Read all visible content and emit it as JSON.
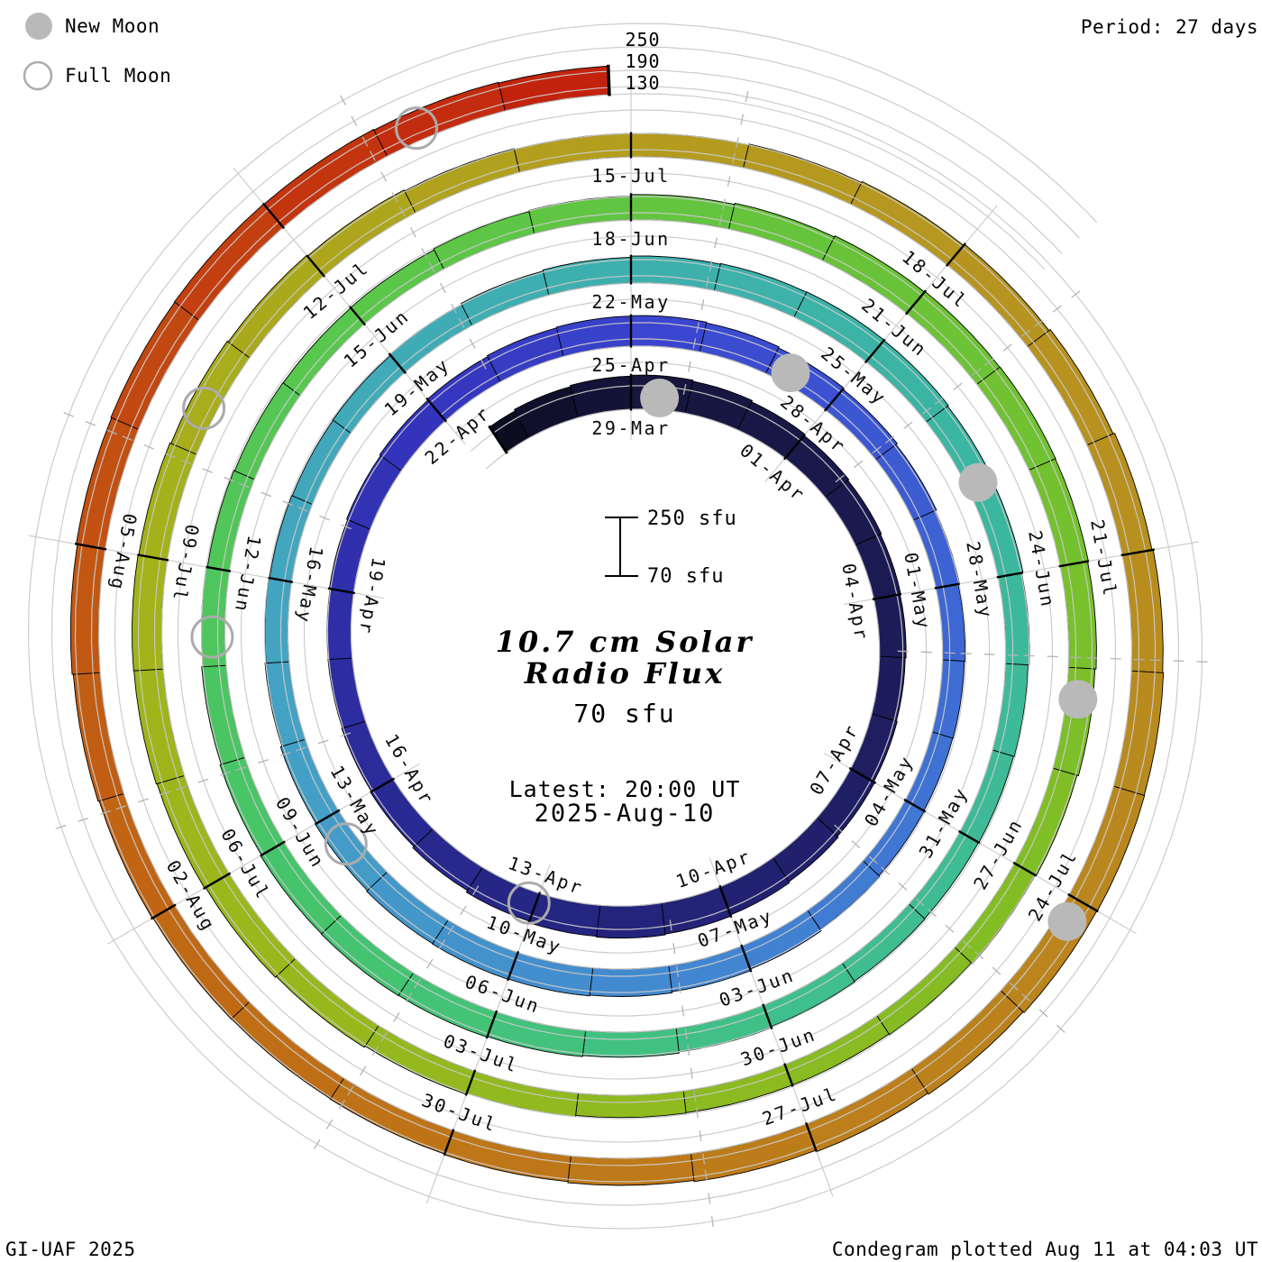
{
  "header": {
    "period": "Period: 27 days"
  },
  "legend": {
    "new_moon": "New Moon",
    "full_moon": "Full Moon"
  },
  "footer": {
    "left": "GI-UAF 2025",
    "right": "Condegram plotted Aug 11 at 04:03 UT"
  },
  "center_text": {
    "title_line1": "10.7 cm Solar",
    "title_line2": "Radio Flux",
    "flux_baseline": "70 sfu",
    "latest_line1": "Latest: 20:00 UT",
    "latest_line2": "2025-Aug-10",
    "accent_color": "#f03a34"
  },
  "scale": {
    "radial_labels": [
      "250",
      "190",
      "130"
    ],
    "bar_top_label": "250 sfu",
    "bar_bottom_label": "70 sfu"
  },
  "chart_data": {
    "type": "bar",
    "layout": "polar-spiral",
    "title": "10.7 cm Solar Radio Flux",
    "units": "sfu",
    "period_days": 27,
    "angle_mapping": "one revolution = 27 days, clockwise, 29-Mar at top",
    "baseline_sfu": 70,
    "grid_levels_sfu": [
      70,
      130,
      190,
      250
    ],
    "start_day_index": -3,
    "end_day_index": 134.83,
    "day_zero_date": "29-Mar-2025",
    "latest_sample": "2025-Aug-10 20:00 UT",
    "flux_sfu": [
      148,
      152,
      155,
      157,
      154,
      150,
      146,
      143,
      140,
      138,
      136,
      138,
      141,
      144,
      147,
      150,
      152,
      150,
      146,
      141,
      137,
      134,
      132,
      131,
      133,
      136,
      139,
      142,
      145,
      147,
      148,
      146,
      143,
      139,
      135,
      131,
      128,
      126,
      125,
      126,
      129,
      133,
      137,
      140,
      142,
      143,
      142,
      139,
      136,
      132,
      129,
      127,
      126,
      127,
      130,
      133,
      136,
      139,
      141,
      142,
      141,
      138,
      135,
      131,
      128,
      126,
      125,
      126,
      128,
      131,
      134,
      137,
      139,
      140,
      139,
      136,
      133,
      130,
      127,
      125,
      124,
      125,
      128,
      131,
      135,
      138,
      141,
      143,
      144,
      143,
      141,
      138,
      134,
      131,
      128,
      126,
      126,
      127,
      130,
      133,
      137,
      140,
      143,
      145,
      146,
      144,
      141,
      138,
      135,
      132,
      130,
      130,
      132,
      135,
      139,
      143,
      147,
      150,
      152,
      153,
      152,
      149,
      146,
      142,
      139,
      136,
      134,
      133,
      134,
      136,
      139,
      142,
      145,
      147,
      148,
      147,
      145,
      143
    ],
    "date_labels": {
      "turns": [
        [
          "29-Mar",
          "01-Apr",
          "04-Apr",
          "07-Apr",
          "10-Apr",
          "13-Apr",
          "16-Apr",
          "19-Apr",
          "22-Apr"
        ],
        [
          "25-Apr",
          "28-Apr",
          "01-May",
          "04-May",
          "07-May",
          "10-May",
          "13-May",
          "16-May",
          "19-May"
        ],
        [
          "22-May",
          "25-May",
          "28-May",
          "31-May",
          "03-Jun",
          "06-Jun",
          "09-Jun",
          "12-Jun",
          "15-Jun"
        ],
        [
          "18-Jun",
          "21-Jun",
          "24-Jun",
          "27-Jun",
          "30-Jun",
          "03-Jul",
          "06-Jul",
          "09-Jul",
          "12-Jul"
        ],
        [
          "15-Jul",
          "18-Jul",
          "21-Jul",
          "24-Jul",
          "27-Jul",
          "30-Jul",
          "02-Aug",
          "05-Aug"
        ]
      ]
    },
    "moons": {
      "new": [
        {
          "date": "29-Mar",
          "day": 0.5
        },
        {
          "date": "27-Apr",
          "day": 29.3
        },
        {
          "date": "27-May",
          "day": 58.9
        },
        {
          "date": "25-Jun",
          "day": 88.3
        },
        {
          "date": "24-Jul",
          "day": 117.2
        }
      ],
      "full": [
        {
          "date": "13-Apr",
          "day": 15.1
        },
        {
          "date": "12-May",
          "day": 44.6
        },
        {
          "date": "11-Jun",
          "day": 74.3
        },
        {
          "date": "10-Jul",
          "day": 103.4
        },
        {
          "date": "09-Aug",
          "day": 133.3
        }
      ],
      "new_moon_color": "#b9b9b9",
      "full_moon_ring_color": "#ababab"
    },
    "colormap": [
      [
        -3,
        "#0b0b1c"
      ],
      [
        0,
        "#15153c"
      ],
      [
        8,
        "#1d1d5e"
      ],
      [
        16,
        "#27278a"
      ],
      [
        24,
        "#3434be"
      ],
      [
        28,
        "#3b49d1"
      ],
      [
        34,
        "#3e6ad3"
      ],
      [
        40,
        "#4288d1"
      ],
      [
        46,
        "#44a1c5"
      ],
      [
        52,
        "#3fadb3"
      ],
      [
        58,
        "#3bb5a3"
      ],
      [
        65,
        "#3fbe8f"
      ],
      [
        71,
        "#44c46e"
      ],
      [
        78,
        "#58c74b"
      ],
      [
        84,
        "#6ac336"
      ],
      [
        90,
        "#82bd24"
      ],
      [
        96,
        "#93b91e"
      ],
      [
        102,
        "#a3b31a"
      ],
      [
        108,
        "#b49c1e"
      ],
      [
        113,
        "#b7911f"
      ],
      [
        118,
        "#bb831d"
      ],
      [
        123,
        "#bf7517"
      ],
      [
        127,
        "#c16113"
      ],
      [
        130,
        "#c24d11"
      ],
      [
        133,
        "#c3300e"
      ],
      [
        135,
        "#c31f0c"
      ]
    ],
    "grid_color": "#c9c9c9",
    "legend_position": "top-left"
  }
}
